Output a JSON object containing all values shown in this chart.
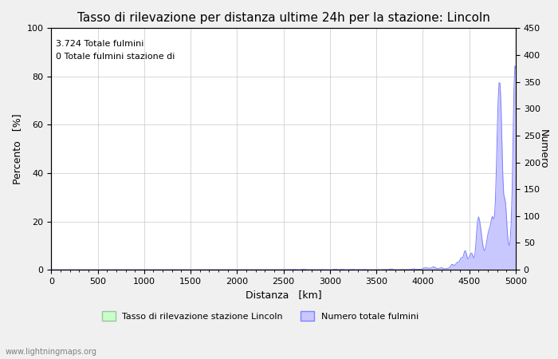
{
  "title": "Tasso di rilevazione per distanza ultime 24h per la stazione: Lincoln",
  "xlabel": "Distanza   [km]",
  "ylabel_left": "Percento   [%]",
  "ylabel_right": "Numero",
  "annotation_line1": "3.724 Totale fulmini",
  "annotation_line2": "0 Totale fulmini stazione di",
  "xlim": [
    0,
    5000
  ],
  "ylim_left": [
    0,
    100
  ],
  "ylim_right": [
    0,
    450
  ],
  "xticks": [
    0,
    500,
    1000,
    1500,
    2000,
    2500,
    3000,
    3500,
    4000,
    4500,
    5000
  ],
  "yticks_left": [
    0,
    20,
    40,
    60,
    80,
    100
  ],
  "yticks_right": [
    0,
    50,
    100,
    150,
    200,
    250,
    300,
    350,
    400,
    450
  ],
  "legend_label_green": "Tasso di rilevazione stazione Lincoln",
  "legend_label_blue": "Numero totale fulmini",
  "watermark": "www.lightningmaps.org",
  "bg_color": "#f0f0f0",
  "plot_bg_color": "#ffffff",
  "line_color_blue": "#8080ff",
  "fill_color_blue": "#c8c8ff",
  "fill_color_green": "#c8ffc8",
  "grid_color": "#c8c8c8",
  "title_fontsize": 11,
  "axis_fontsize": 9,
  "tick_fontsize": 8,
  "annotation_fontsize": 8,
  "watermark_fontsize": 7
}
